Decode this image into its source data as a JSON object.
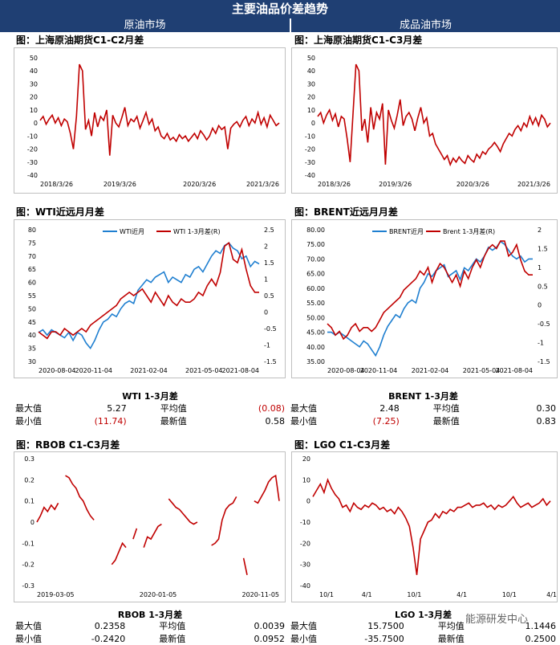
{
  "header": {
    "title": "主要油品价差趋势",
    "left_section": "原油市场",
    "right_section": "成品油市场"
  },
  "colors": {
    "red": "#c00000",
    "blue": "#1f7fd0",
    "header_bg": "#1f3f73"
  },
  "panels": {
    "p1": {
      "title": "图：上海原油期货C1-C2月差"
    },
    "p2": {
      "title": "图：上海原油期货C1-C3月差"
    },
    "p3": {
      "title": "图：WTI近远月月差"
    },
    "p4": {
      "title": "图：BRENT近远月月差"
    },
    "p5": {
      "title": "图：RBOB C1-C3月差"
    },
    "p6": {
      "title": "图：LGO C1-C3月差"
    }
  },
  "stats": {
    "wti": {
      "caption": "WTI 1-3月差",
      "max_label": "最大值",
      "max": "5.27",
      "avg_label": "平均值",
      "avg": "(0.08)",
      "min_label": "最小值",
      "min": "(11.74)",
      "latest_label": "最新值",
      "latest": "0.58"
    },
    "brent": {
      "caption": "BRENT 1-3月差",
      "max_label": "最大值",
      "max": "2.48",
      "avg_label": "平均值",
      "avg": "0.30",
      "min_label": "最小值",
      "min": "(7.25)",
      "latest_label": "最新值",
      "latest": "0.83"
    },
    "rbob": {
      "caption": "RBOB 1-3月差",
      "max_label": "最大值",
      "max": "0.2358",
      "avg_label": "平均值",
      "avg": "0.0039",
      "min_label": "最小值",
      "min": "-0.2420",
      "latest_label": "最新值",
      "latest": "0.0952"
    },
    "lgo": {
      "caption": "LGO 1-3月差",
      "max_label": "最大值",
      "max": "15.7500",
      "avg_label": "平均值",
      "avg": "1.1446",
      "min_label": "最小值",
      "min": "-35.7500",
      "latest_label": "最新值",
      "latest": "0.2500"
    }
  },
  "watermark": "能源研发中心",
  "chart_data": [
    {
      "id": "p1",
      "type": "line",
      "title": "上海原油期货C1-C2月差",
      "yticks": [
        "50",
        "40",
        "30",
        "20",
        "10",
        "0",
        "-10",
        "-20",
        "-30",
        "-40"
      ],
      "ylim": [
        -40,
        50
      ],
      "xticks": [
        "2018/3/26",
        "2019/3/26",
        "2020/3/26",
        "2021/3/26"
      ],
      "series": [
        {
          "name": "C1-C2",
          "color": "#c00000",
          "values": [
            2,
            5,
            -1,
            3,
            6,
            0,
            4,
            -2,
            3,
            1,
            -8,
            -20,
            5,
            45,
            40,
            -5,
            2,
            -10,
            8,
            -3,
            5,
            2,
            10,
            -25,
            6,
            0,
            -3,
            4,
            12,
            -2,
            3,
            1,
            5,
            -4,
            2,
            8,
            -1,
            3,
            -6,
            -3,
            -10,
            -12,
            -8,
            -13,
            -11,
            -14,
            -9,
            -12,
            -10,
            -14,
            -11,
            -8,
            -12,
            -6,
            -9,
            -13,
            -10,
            -4,
            -8,
            -2,
            -5,
            -3,
            -20,
            -4,
            -1,
            1,
            -3,
            2,
            5,
            -2,
            3,
            0,
            8,
            -1,
            4,
            -3,
            6,
            2,
            -2,
            0
          ]
        }
      ]
    },
    {
      "id": "p2",
      "type": "line",
      "title": "上海原油期货C1-C3月差",
      "yticks": [
        "50",
        "40",
        "30",
        "20",
        "10",
        "0",
        "-10",
        "-20",
        "-30",
        "-40"
      ],
      "ylim": [
        -40,
        50
      ],
      "xticks": [
        "2018/3/26",
        "2019/3/26",
        "2020/3/26",
        "2021/3/26"
      ],
      "series": [
        {
          "name": "C1-C3",
          "color": "#c00000",
          "values": [
            5,
            8,
            0,
            6,
            10,
            2,
            7,
            -3,
            5,
            3,
            -12,
            -30,
            8,
            45,
            40,
            -6,
            3,
            -15,
            12,
            -5,
            8,
            3,
            15,
            -32,
            10,
            2,
            -4,
            6,
            18,
            -2,
            5,
            8,
            3,
            -6,
            4,
            12,
            0,
            4,
            -10,
            -8,
            -16,
            -20,
            -24,
            -28,
            -25,
            -32,
            -27,
            -30,
            -26,
            -29,
            -31,
            -25,
            -28,
            -30,
            -24,
            -27,
            -22,
            -24,
            -20,
            -18,
            -15,
            -18,
            -22,
            -16,
            -12,
            -8,
            -10,
            -5,
            -2,
            -6,
            0,
            -3,
            5,
            -1,
            4,
            -2,
            6,
            3,
            -3,
            0
          ]
        }
      ]
    },
    {
      "id": "p3",
      "type": "line",
      "title": "WTI近远月月差",
      "yticks": [
        "80",
        "75",
        "70",
        "65",
        "60",
        "55",
        "50",
        "45",
        "40",
        "35",
        "30"
      ],
      "ylim": [
        30,
        80
      ],
      "y2ticks": [
        "2.5",
        "2",
        "1.5",
        "1",
        "0.5",
        "0",
        "-0.5",
        "-1",
        "-1.5"
      ],
      "y2lim": [
        -1.5,
        2.5
      ],
      "xticks": [
        "2020-08-04",
        "2020-11-04",
        "2021-02-04",
        "2021-05-04",
        "2021-08-04"
      ],
      "series": [
        {
          "name": "WTI近月",
          "axis": "left",
          "color": "#1f7fd0",
          "values": [
            41,
            42,
            40,
            42,
            41,
            40,
            39,
            41,
            38,
            41,
            40,
            37,
            35,
            38,
            42,
            45,
            46,
            48,
            47,
            50,
            52,
            53,
            52,
            57,
            59,
            61,
            60,
            62,
            63,
            64,
            60,
            62,
            61,
            60,
            63,
            62,
            65,
            66,
            64,
            67,
            70,
            72,
            71,
            74,
            75,
            73,
            72,
            69,
            70,
            66,
            68,
            67
          ]
        },
        {
          "name": "WTI 1-3月差(R)",
          "axis": "right",
          "color": "#c00000",
          "values": [
            -0.6,
            -0.7,
            -0.8,
            -0.6,
            -0.6,
            -0.7,
            -0.5,
            -0.6,
            -0.7,
            -0.6,
            -0.5,
            -0.6,
            -0.4,
            -0.3,
            -0.2,
            -0.1,
            0.0,
            0.1,
            0.2,
            0.4,
            0.5,
            0.6,
            0.5,
            0.6,
            0.7,
            0.5,
            0.3,
            0.6,
            0.4,
            0.2,
            0.5,
            0.3,
            0.2,
            0.4,
            0.3,
            0.3,
            0.4,
            0.6,
            0.5,
            0.8,
            1.0,
            0.8,
            1.2,
            2.0,
            2.1,
            1.6,
            1.5,
            1.9,
            1.3,
            0.8,
            0.6,
            0.6
          ]
        }
      ]
    },
    {
      "id": "p4",
      "type": "line",
      "title": "BRENT近远月月差",
      "yticks": [
        "80.00",
        "75.00",
        "70.00",
        "65.00",
        "60.00",
        "55.00",
        "50.00",
        "45.00",
        "40.00",
        "35.00"
      ],
      "ylim": [
        35,
        80
      ],
      "y2ticks": [
        "2",
        "1.5",
        "1",
        "0.5",
        "0",
        "-0.5",
        "-1",
        "-1.5"
      ],
      "y2lim": [
        -1.5,
        2
      ],
      "xticks": [
        "2020-08-04",
        "2020-11-04",
        "2021-02-04",
        "2021-05-04",
        "2021-08-04"
      ],
      "series": [
        {
          "name": "BRENT近月",
          "axis": "left",
          "color": "#1f7fd0",
          "values": [
            45,
            45,
            44,
            45,
            44,
            43,
            42,
            41,
            40,
            42,
            41,
            39,
            37,
            40,
            44,
            47,
            49,
            51,
            50,
            53,
            55,
            56,
            55,
            60,
            62,
            65,
            64,
            66,
            67,
            68,
            64,
            65,
            66,
            63,
            67,
            66,
            68,
            70,
            69,
            71,
            74,
            73,
            74,
            76,
            75,
            73,
            71,
            70,
            71,
            69,
            70,
            70
          ]
        },
        {
          "name": "Brent 1-3月差(R)",
          "axis": "right",
          "color": "#c00000",
          "values": [
            -0.5,
            -0.6,
            -0.8,
            -0.7,
            -0.9,
            -0.8,
            -0.6,
            -0.5,
            -0.7,
            -0.6,
            -0.6,
            -0.7,
            -0.6,
            -0.4,
            -0.2,
            -0.1,
            0.0,
            0.1,
            0.2,
            0.4,
            0.5,
            0.6,
            0.7,
            0.9,
            0.8,
            1.0,
            0.6,
            0.9,
            1.1,
            1.0,
            0.8,
            0.6,
            0.8,
            0.5,
            0.9,
            0.7,
            1.0,
            1.2,
            1.0,
            1.3,
            1.5,
            1.6,
            1.5,
            1.7,
            1.7,
            1.3,
            1.4,
            1.6,
            1.2,
            0.9,
            0.8,
            0.8
          ]
        }
      ]
    },
    {
      "id": "p5",
      "type": "line",
      "title": "RBOB C1-C3月差",
      "yticks": [
        "0.3",
        "0.2",
        "0.1",
        "0",
        "-0.1",
        "-0.2",
        "-0.3"
      ],
      "ylim": [
        -0.3,
        0.3
      ],
      "xticks": [
        "2019-03-05",
        "2020-01-05",
        "2020-11-05"
      ],
      "series": [
        {
          "name": "RBOB C1-C3",
          "color": "#c00000",
          "values": [
            0.0,
            0.03,
            0.07,
            0.05,
            0.08,
            0.06,
            0.09,
            null,
            0.22,
            0.21,
            0.18,
            0.16,
            0.12,
            0.1,
            0.06,
            0.03,
            0.01,
            null,
            null,
            -0.01,
            null,
            -0.2,
            -0.18,
            -0.14,
            -0.1,
            -0.12,
            null,
            -0.08,
            -0.03,
            null,
            -0.12,
            -0.07,
            -0.08,
            -0.05,
            -0.02,
            -0.01,
            null,
            0.11,
            0.09,
            0.07,
            0.06,
            0.04,
            0.02,
            0.0,
            -0.01,
            0.0,
            null,
            0.0,
            null,
            -0.11,
            -0.1,
            -0.08,
            0.01,
            0.06,
            0.08,
            0.09,
            0.12,
            null,
            -0.17,
            -0.25,
            null,
            0.1,
            0.09,
            0.12,
            0.15,
            0.19,
            0.21,
            0.22,
            0.1
          ]
        }
      ]
    },
    {
      "id": "p6",
      "type": "line",
      "title": "LGO C1-C3月差",
      "yticks": [
        "20",
        "10",
        "0",
        "-10",
        "-20",
        "-30",
        "-40"
      ],
      "ylim": [
        -40,
        20
      ],
      "xticks": [
        "10/1",
        "4/1",
        "10/1",
        "4/1",
        "10/1",
        "4/1"
      ],
      "series": [
        {
          "name": "LGO C1-C3",
          "color": "#c00000",
          "values": [
            2,
            5,
            8,
            4,
            10,
            6,
            3,
            1,
            -3,
            -2,
            -5,
            -1,
            -3,
            -4,
            -2,
            -3,
            -1,
            -2,
            -4,
            -3,
            -5,
            -4,
            -6,
            -3,
            -5,
            -8,
            -12,
            -22,
            -35,
            -18,
            -14,
            -10,
            -9,
            -6,
            -8,
            -5,
            -6,
            -4,
            -5,
            -3,
            -3,
            -2,
            -1,
            -3,
            -2,
            -2,
            -1,
            -3,
            -2,
            -4,
            -2,
            -3,
            -2,
            0,
            2,
            -1,
            -3,
            -2,
            -1,
            -3,
            -2,
            -1,
            1,
            -2,
            0
          ]
        }
      ]
    }
  ]
}
